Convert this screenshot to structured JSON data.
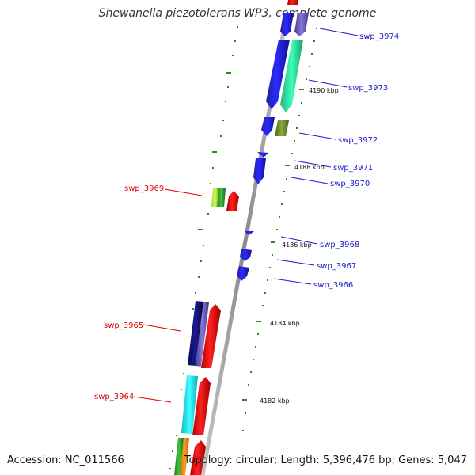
{
  "title": "Shewanella piezotolerans WP3, complete genome",
  "footer": {
    "accession": "Accession: NC_011566",
    "summary": "Topology: circular; Length: 5,396,476 bp; Genes: 5,047"
  },
  "colors": {
    "backbone": "#999999",
    "tick": "#2a8a1a",
    "label_forward": "#1a1acc",
    "label_reverse": "#e00000"
  },
  "scale_labels": [
    "4190 kbp",
    "4188 kbp",
    "4186 kbp",
    "4184 kbp",
    "4182 kbp"
  ],
  "gene_labels_right": [
    "swp_3974",
    "swp_3973",
    "swp_3972",
    "swp_3971",
    "swp_3970",
    "swp_3968",
    "swp_3967",
    "swp_3966"
  ],
  "gene_labels_left": [
    "swp_3969",
    "swp_3965",
    "swp_3964"
  ]
}
